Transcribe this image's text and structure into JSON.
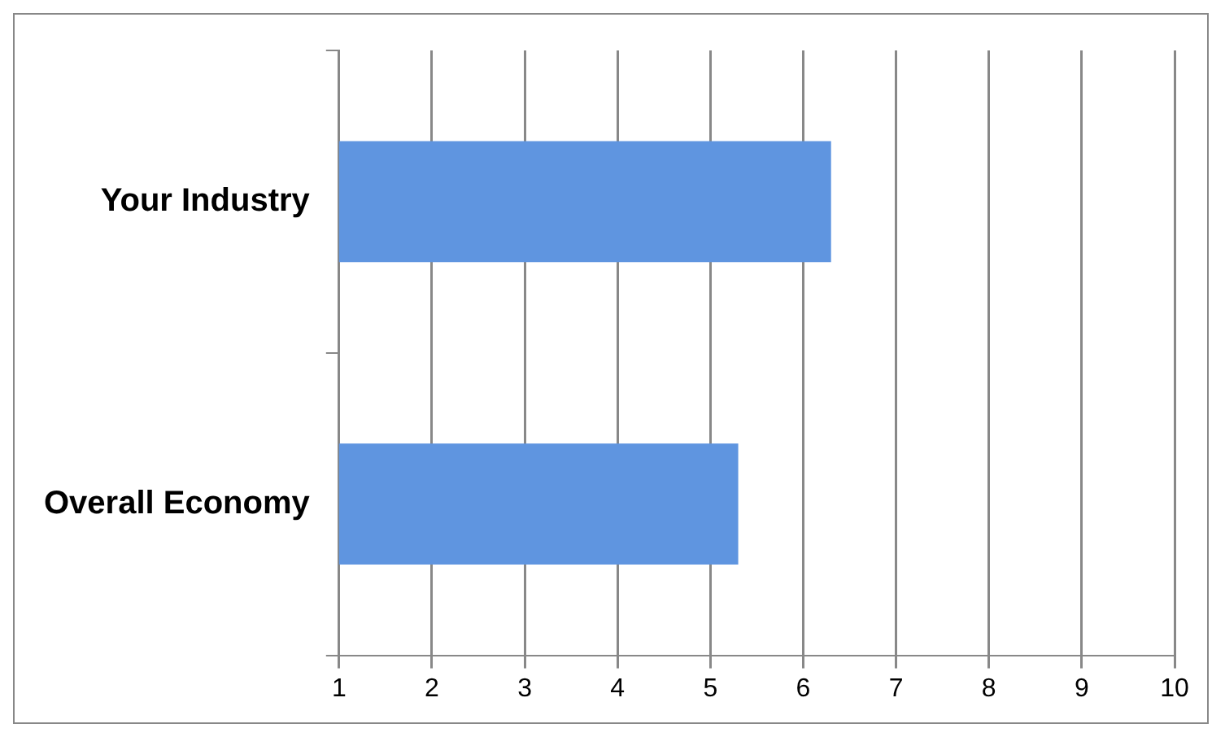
{
  "chart_data": {
    "type": "bar",
    "orientation": "horizontal",
    "categories": [
      "Your Industry",
      "Overall Economy"
    ],
    "values": [
      6.3,
      5.3
    ],
    "color": "#5f95e0",
    "xlim": [
      1,
      10
    ],
    "xticks": [
      1,
      2,
      3,
      4,
      5,
      6,
      7,
      8,
      9,
      10
    ],
    "grid": "x",
    "legend": false
  }
}
